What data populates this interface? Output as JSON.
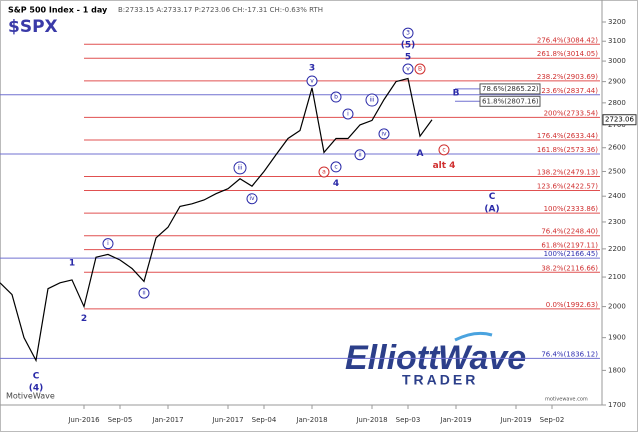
{
  "chart_data": {
    "type": "line",
    "title": "S&P 500 Index - 1 day",
    "quote": "B:2733.15 A:2733.17 P:2723.06 CH:-17.31 CH:-0.63% RTH",
    "symbol": "$SPX",
    "source": "MotiveWave",
    "site": "motivewave.com",
    "watermark": [
      "Elliott",
      "Wave",
      "TRADER"
    ],
    "log_scale": true,
    "ylim": [
      1700,
      3200
    ],
    "yticks": [
      1700,
      1800,
      1900,
      2000,
      2100,
      2200,
      2300,
      2400,
      2500,
      2600,
      2700,
      2800,
      2900,
      3000,
      3100,
      3200
    ],
    "xlim": [
      "2015-11",
      "2020-01"
    ],
    "xticks": [
      {
        "value": "2016-06",
        "label": "Jun-2016"
      },
      {
        "value": "2016-09",
        "label": "Sep-05"
      },
      {
        "value": "2017-01",
        "label": "Jan-2017"
      },
      {
        "value": "2017-06",
        "label": "Jun-2017"
      },
      {
        "value": "2017-09",
        "label": "Sep-04"
      },
      {
        "value": "2018-01",
        "label": "Jan-2018"
      },
      {
        "value": "2018-06",
        "label": "Jun-2018"
      },
      {
        "value": "2018-09",
        "label": "Sep-03"
      },
      {
        "value": "2019-01",
        "label": "Jan-2019"
      },
      {
        "value": "2019-06",
        "label": "Jun-2019"
      },
      {
        "value": "2019-09",
        "label": "Sep-02"
      }
    ],
    "series": [
      {
        "color": "#000000",
        "x": [
          "2015-11",
          "2015-12",
          "2016-01",
          "2016-02",
          "2016-03",
          "2016-04",
          "2016-05",
          "2016-06",
          "2016-07",
          "2016-08",
          "2016-09",
          "2016-10",
          "2016-11",
          "2016-12",
          "2017-01",
          "2017-02",
          "2017-03",
          "2017-04",
          "2017-05",
          "2017-06",
          "2017-07",
          "2017-08",
          "2017-09",
          "2017-10",
          "2017-11",
          "2017-12",
          "2018-01",
          "2018-02",
          "2018-03",
          "2018-04",
          "2018-05",
          "2018-06",
          "2018-07",
          "2018-08",
          "2018-09",
          "2018-10",
          "2018-11"
        ],
        "values": [
          2080,
          2040,
          1900,
          1830,
          2060,
          2080,
          2090,
          2000,
          2170,
          2180,
          2160,
          2130,
          2085,
          2240,
          2280,
          2360,
          2370,
          2385,
          2410,
          2430,
          2470,
          2440,
          2500,
          2570,
          2640,
          2675,
          2870,
          2580,
          2640,
          2640,
          2700,
          2720,
          2815,
          2900,
          2915,
          2650,
          2723.06
        ]
      }
    ],
    "last_price": 2723.06,
    "fibs": [
      {
        "value": 3084.42,
        "label": "276.4%(3084.42)",
        "color": "#e05050",
        "label_color": "#d03030",
        "start": "2016-06"
      },
      {
        "value": 3014.05,
        "label": "261.8%(3014.05)",
        "color": "#e05050",
        "label_color": "#d03030",
        "start": "2016-06"
      },
      {
        "value": 2903.69,
        "label": "238.2%(2903.69)",
        "color": "#e05050",
        "label_color": "#d03030",
        "start": "2016-06"
      },
      {
        "value": 2837.44,
        "label": "223.6%(2837.44)",
        "color": "#7070d0",
        "label_color": "#d03030",
        "start": "2015-11"
      },
      {
        "value": 2733.54,
        "label": "200%(2733.54)",
        "color": "#e05050",
        "label_color": "#d03030",
        "start": "2016-06"
      },
      {
        "value": 2633.44,
        "label": "176.4%(2633.44)",
        "color": "#e05050",
        "label_color": "#d03030",
        "start": "2016-06"
      },
      {
        "value": 2573.36,
        "label": "161.8%(2573.36)",
        "color": "#7070d0",
        "label_color": "#d03030",
        "start": "2015-11"
      },
      {
        "value": 2479.13,
        "label": "138.2%(2479.13)",
        "color": "#e05050",
        "label_color": "#d03030",
        "start": "2016-06"
      },
      {
        "value": 2422.57,
        "label": "123.6%(2422.57)",
        "color": "#e05050",
        "label_color": "#d03030",
        "start": "2016-06"
      },
      {
        "value": 2333.86,
        "label": "100%(2333.86)",
        "color": "#e05050",
        "label_color": "#d03030",
        "start": "2016-06"
      },
      {
        "value": 2248.4,
        "label": "76.4%(2248.40)",
        "color": "#e05050",
        "label_color": "#d03030",
        "start": "2016-06"
      },
      {
        "value": 2197.11,
        "label": "61.8%(2197.11)",
        "color": "#e05050",
        "label_color": "#d03030",
        "start": "2016-06"
      },
      {
        "value": 2166.45,
        "label": "100%(2166.45)",
        "color": "#7070d0",
        "label_color": "#3030b0",
        "start": "2015-11"
      },
      {
        "value": 2116.66,
        "label": "38.2%(2116.66)",
        "color": "#e05050",
        "label_color": "#d03030",
        "start": "2016-06"
      },
      {
        "value": 1992.63,
        "label": "0.0%(1992.63)",
        "color": "#e05050",
        "label_color": "#d03030",
        "start": "2016-06"
      },
      {
        "value": 1836.12,
        "label": "76.4%(1836.12)",
        "color": "#7070d0",
        "label_color": "#3030b0",
        "start": "2015-11"
      }
    ],
    "targets": [
      {
        "value": 2865.22,
        "label": "78.6%(2865.22)"
      },
      {
        "value": 2807.16,
        "label": "61.8%(2807.16)"
      }
    ],
    "annotations": [
      {
        "text": "C",
        "x": "2016-02",
        "y": 1783,
        "color": "#2a2aa8",
        "circled": false
      },
      {
        "text": "(4)",
        "x": "2016-02",
        "y": 1748,
        "color": "#2a2aa8",
        "circled": false
      },
      {
        "text": "1",
        "x": "2016-05",
        "y": 2150,
        "color": "#2a2aa8",
        "circled": false
      },
      {
        "text": "2",
        "x": "2016-06",
        "y": 1961,
        "color": "#2a2aa8",
        "circled": false
      },
      {
        "text": "i",
        "x": "2016-08",
        "y": 2219,
        "color": "#2a2aa8",
        "circled": true
      },
      {
        "text": "ii",
        "x": "2016-11",
        "y": 2045,
        "color": "#2a2aa8",
        "circled": true
      },
      {
        "text": "iii",
        "x": "2017-07",
        "y": 2515,
        "color": "#2a2aa8",
        "circled": true
      },
      {
        "text": "iv",
        "x": "2017-08",
        "y": 2390,
        "color": "#2a2aa8",
        "circled": true
      },
      {
        "text": "v",
        "x": "2018-01",
        "y": 2903,
        "color": "#2a2aa8",
        "circled": true
      },
      {
        "text": "3",
        "x": "2018-01",
        "y": 2966,
        "color": "#2a2aa8",
        "circled": false
      },
      {
        "text": "a",
        "x": "2018-02",
        "y": 2498,
        "color": "#d03030",
        "circled": true
      },
      {
        "text": "b",
        "x": "2018-03",
        "y": 2827,
        "color": "#2a2aa8",
        "circled": true
      },
      {
        "text": "c",
        "x": "2018-03",
        "y": 2519,
        "color": "#2a2aa8",
        "circled": true
      },
      {
        "text": "4",
        "x": "2018-03",
        "y": 2450,
        "color": "#2a2aa8",
        "circled": false
      },
      {
        "text": "i",
        "x": "2018-04",
        "y": 2749,
        "color": "#2a2aa8",
        "circled": true
      },
      {
        "text": "ii",
        "x": "2018-05",
        "y": 2570,
        "color": "#2a2aa8",
        "circled": true
      },
      {
        "text": "iii",
        "x": "2018-06",
        "y": 2813,
        "color": "#2a2aa8",
        "circled": true
      },
      {
        "text": "iv",
        "x": "2018-07",
        "y": 2660,
        "color": "#2a2aa8",
        "circled": true
      },
      {
        "text": "v",
        "x": "2018-09",
        "y": 2961,
        "color": "#2a2aa8",
        "circled": true
      },
      {
        "text": "5",
        "x": "2018-09",
        "y": 3020,
        "color": "#2a2aa8",
        "circled": false
      },
      {
        "text": "(5)",
        "x": "2018-09",
        "y": 3081,
        "color": "#2a2aa8",
        "circled": false
      },
      {
        "text": "3",
        "x": "2018-09",
        "y": 3142,
        "color": "#2a2aa8",
        "circled": true
      },
      {
        "text": "B",
        "x": "2018-10",
        "y": 2961,
        "color": "#d03030",
        "circled": true
      },
      {
        "text": "A",
        "x": "2018-10",
        "y": 2575,
        "color": "#2a2aa8",
        "circled": false
      },
      {
        "text": "c",
        "x": "2018-12",
        "y": 2591,
        "color": "#d03030",
        "circled": true
      },
      {
        "text": "alt 4",
        "x": "2018-12",
        "y": 2524,
        "color": "#d03030",
        "circled": false
      },
      {
        "text": "B",
        "x": "2019-01",
        "y": 2846,
        "color": "#2a2aa8",
        "circled": false
      },
      {
        "text": "C",
        "x": "2019-04",
        "y": 2398,
        "color": "#2a2aa8",
        "circled": false
      },
      {
        "text": "(A)",
        "x": "2019-04",
        "y": 2350,
        "color": "#2a2aa8",
        "circled": false
      }
    ]
  }
}
